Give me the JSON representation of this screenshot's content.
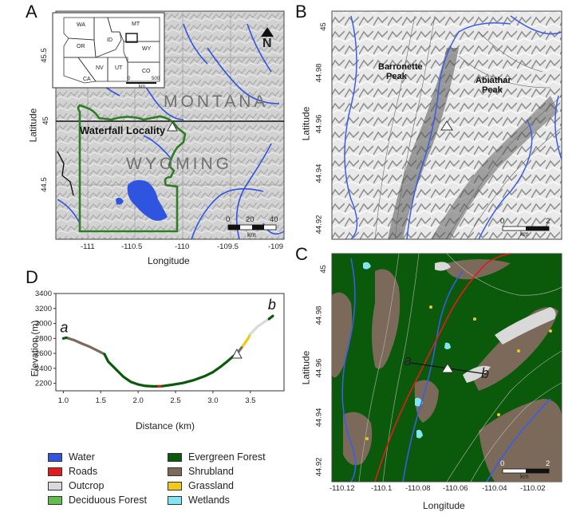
{
  "panels": {
    "a": {
      "letter": "A",
      "ylabel": "Latitude",
      "xlabel": "Longitude",
      "yticks": [
        "45.5",
        "45",
        "44.5"
      ],
      "xticks": [
        "-111",
        "-110.5",
        "-110",
        "-109.5",
        "-109"
      ],
      "state_labels": [
        "MONTANA",
        "WYOMING"
      ],
      "locality": "Waterfall Locality",
      "north": "N",
      "scale_labels": [
        "0",
        "20",
        "40"
      ],
      "scale_unit": "km",
      "inset_states": [
        "WA",
        "MT",
        "OR",
        "ID",
        "WY",
        "NV",
        "UT",
        "CO",
        "CA"
      ],
      "inset_scale": [
        "0",
        "500"
      ],
      "inset_unit": "km"
    },
    "b": {
      "letter": "B",
      "ylabel": "Latitude",
      "yticks": [
        "45",
        "44.98",
        "44.96",
        "44.94",
        "44.92"
      ],
      "peaks": [
        {
          "line1": "Barronette",
          "line2": "Peak"
        },
        {
          "line1": "Abiathar",
          "line2": "Peak"
        }
      ],
      "scale_labels": [
        "0",
        "2"
      ],
      "scale_unit": "km"
    },
    "c": {
      "letter": "C",
      "ylabel": "Latitude",
      "xlabel": "Longitude",
      "yticks": [
        "45",
        "44.98",
        "44.96",
        "44.94",
        "44.92"
      ],
      "xticks": [
        "-110.12",
        "-110.1",
        "-110.08",
        "-110.06",
        "-110.04",
        "-110.02"
      ],
      "profile_start": "a",
      "profile_end": "b",
      "scale_labels": [
        "0",
        "2"
      ],
      "scale_unit": "km"
    },
    "d": {
      "letter": "D"
    }
  },
  "chart_data": {
    "type": "line",
    "xlabel": "Distance (km)",
    "ylabel": "Elevation (m)",
    "xlim": [
      0.9,
      3.95
    ],
    "ylim": [
      2100,
      3400
    ],
    "xticks": [
      1.0,
      1.5,
      2.0,
      2.5,
      3.0,
      3.5
    ],
    "yticks": [
      2200,
      2400,
      2600,
      2800,
      3000,
      3200,
      3400
    ],
    "x_tick_labels": [
      "1.0",
      "1.5",
      "2.0",
      "2.5",
      "3.0",
      "3.5"
    ],
    "y_tick_labels": [
      "2200",
      "2400",
      "2600",
      "2800",
      "3000",
      "3200",
      "3400"
    ],
    "start_label": "a",
    "end_label": "b",
    "locality_marker": {
      "x": 3.32,
      "y": 2590
    },
    "segments": [
      {
        "class": "Evergreen Forest",
        "x": [
          1.0,
          1.04,
          1.07
        ],
        "y": [
          2800,
          2810,
          2800
        ]
      },
      {
        "class": "Shrubland",
        "x": [
          1.07,
          1.15,
          1.25,
          1.35,
          1.45,
          1.55
        ],
        "y": [
          2800,
          2775,
          2730,
          2690,
          2640,
          2590
        ]
      },
      {
        "class": "Evergreen Forest",
        "x": [
          1.55,
          1.6,
          1.7,
          1.8,
          1.9,
          2.0,
          2.1,
          2.2,
          2.27
        ],
        "y": [
          2590,
          2490,
          2390,
          2290,
          2220,
          2185,
          2165,
          2160,
          2160
        ]
      },
      {
        "class": "Roads",
        "x": [
          2.27,
          2.32
        ],
        "y": [
          2160,
          2162
        ]
      },
      {
        "class": "Evergreen Forest",
        "x": [
          2.32,
          2.45,
          2.6,
          2.75,
          2.9,
          3.0,
          3.1,
          3.2,
          3.28
        ],
        "y": [
          2162,
          2180,
          2205,
          2245,
          2300,
          2350,
          2420,
          2500,
          2570
        ]
      },
      {
        "class": "Shrubland",
        "x": [
          3.28,
          3.34,
          3.4
        ],
        "y": [
          2570,
          2620,
          2700
        ]
      },
      {
        "class": "Grassland",
        "x": [
          3.4,
          3.47,
          3.5
        ],
        "y": [
          2700,
          2800,
          2860
        ]
      },
      {
        "class": "Outcrop",
        "x": [
          3.5,
          3.6,
          3.7,
          3.75
        ],
        "y": [
          2860,
          2960,
          3030,
          3060
        ]
      },
      {
        "class": "Evergreen Forest",
        "x": [
          3.75,
          3.8
        ],
        "y": [
          3060,
          3100
        ]
      }
    ]
  },
  "legend": [
    {
      "label": "Water",
      "color": "#2f55e0"
    },
    {
      "label": "Roads",
      "color": "#e31b1b"
    },
    {
      "label": "Outcrop",
      "color": "#d9d9d9"
    },
    {
      "label": "Deciduous Forest",
      "color": "#5fbf4a"
    },
    {
      "label": "Evergreen Forest",
      "color": "#0b5a0b"
    },
    {
      "label": "Shrubland",
      "color": "#7b6a5a"
    },
    {
      "label": "Grassland",
      "color": "#f2c81a"
    },
    {
      "label": "Wetlands",
      "color": "#7fe6f2"
    }
  ]
}
